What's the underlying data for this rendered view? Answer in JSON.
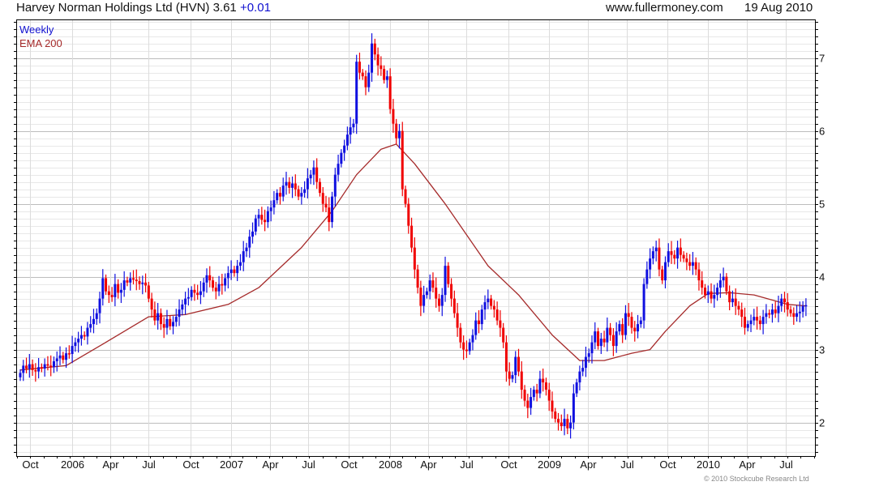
{
  "header": {
    "title": "Harvey Norman Holdings Ltd (HVN) 3.61",
    "change": "+0.01",
    "site": "www.fullermoney.com",
    "date": "19 Aug 2010"
  },
  "footer": {
    "copyright": "© 2010 Stockcube Research Ltd"
  },
  "colors": {
    "up": "#1010e0",
    "down": "#f00000",
    "ema": "#a52a2a",
    "grid_major": "#bdbdbd",
    "grid_minor": "#e8e8e8"
  },
  "chart_data": {
    "type": "candlestick",
    "title": "Harvey Norman Holdings Ltd (HVN)",
    "legend": [
      "Weekly",
      "EMA 200"
    ],
    "legend_placement": "top-left",
    "ylim": [
      1.54,
      7.53
    ],
    "y_ticks": [
      2,
      3,
      4,
      5,
      6,
      7
    ],
    "x_unit": "week index",
    "xlim": [
      -1,
      260
    ],
    "x_ticks": [
      {
        "label": "Oct",
        "week": 3.2
      },
      {
        "label": "2006",
        "week": 17
      },
      {
        "label": "Apr",
        "week": 29.4
      },
      {
        "label": "Jul",
        "week": 41.9
      },
      {
        "label": "Oct",
        "week": 55.7
      },
      {
        "label": "2007",
        "week": 69
      },
      {
        "label": "Apr",
        "week": 81.7
      },
      {
        "label": "Jul",
        "week": 94.2
      },
      {
        "label": "Oct",
        "week": 107.4
      },
      {
        "label": "2008",
        "week": 121
      },
      {
        "label": "Apr",
        "week": 133.4
      },
      {
        "label": "Jul",
        "week": 145.9
      },
      {
        "label": "Oct",
        "week": 159.7
      },
      {
        "label": "2009",
        "week": 173
      },
      {
        "label": "Apr",
        "week": 185.7
      },
      {
        "label": "Jul",
        "week": 198.4
      },
      {
        "label": "Oct",
        "week": 211.7
      },
      {
        "label": "2010",
        "week": 225
      },
      {
        "label": "Apr",
        "week": 237.7
      },
      {
        "label": "Jul",
        "week": 250.4
      }
    ],
    "weekly_close": [
      2.68,
      2.78,
      2.74,
      2.8,
      2.72,
      2.7,
      2.76,
      2.74,
      2.8,
      2.78,
      2.76,
      2.84,
      2.88,
      2.92,
      2.86,
      2.95,
      2.94,
      3.05,
      3.1,
      3.15,
      3.2,
      3.18,
      3.3,
      3.35,
      3.42,
      3.5,
      3.7,
      3.98,
      3.8,
      3.75,
      3.72,
      3.9,
      3.78,
      3.82,
      3.95,
      3.92,
      3.98,
      3.96,
      3.94,
      3.9,
      3.92,
      3.88,
      3.7,
      3.55,
      3.4,
      3.5,
      3.35,
      3.3,
      3.42,
      3.32,
      3.38,
      3.45,
      3.55,
      3.62,
      3.7,
      3.72,
      3.82,
      3.78,
      3.75,
      3.8,
      3.92,
      4.02,
      3.95,
      3.85,
      3.8,
      3.9,
      3.88,
      3.98,
      4.05,
      4.1,
      4.05,
      4.15,
      4.2,
      4.35,
      4.4,
      4.55,
      4.62,
      4.8,
      4.85,
      4.78,
      4.75,
      4.9,
      4.95,
      5.05,
      5.15,
      5.1,
      5.25,
      5.3,
      5.22,
      5.28,
      5.2,
      5.1,
      5.15,
      5.2,
      5.35,
      5.4,
      5.5,
      5.3,
      5.15,
      5.0,
      4.95,
      4.75,
      5.1,
      5.4,
      5.55,
      5.7,
      5.8,
      5.95,
      6.05,
      6.1,
      6.95,
      6.8,
      6.75,
      6.6,
      6.8,
      7.2,
      7.05,
      6.9,
      6.85,
      6.7,
      6.75,
      6.3,
      6.1,
      5.9,
      6.0,
      5.2,
      5.0,
      4.7,
      4.4,
      4.1,
      3.85,
      3.6,
      3.75,
      3.8,
      3.95,
      3.85,
      3.7,
      3.6,
      3.75,
      4.15,
      3.9,
      3.7,
      3.5,
      3.3,
      3.1,
      3.0,
      2.98,
      3.1,
      3.2,
      3.4,
      3.35,
      3.55,
      3.65,
      3.7,
      3.6,
      3.55,
      3.4,
      3.3,
      3.1,
      2.7,
      2.6,
      2.65,
      2.9,
      2.7,
      2.45,
      2.3,
      2.2,
      2.35,
      2.45,
      2.4,
      2.6,
      2.55,
      2.45,
      2.3,
      2.15,
      2.05,
      2.0,
      1.95,
      2.05,
      1.92,
      2.0,
      2.4,
      2.55,
      2.7,
      2.75,
      2.9,
      2.95,
      3.1,
      3.25,
      3.05,
      3.15,
      3.1,
      3.3,
      3.2,
      3.05,
      3.25,
      3.35,
      3.2,
      3.5,
      3.45,
      3.3,
      3.25,
      3.35,
      3.4,
      3.9,
      4.1,
      4.25,
      4.35,
      4.4,
      4.1,
      3.95,
      4.2,
      4.35,
      4.3,
      4.25,
      4.4,
      4.3,
      4.25,
      4.2,
      4.15,
      4.2,
      4.1,
      3.95,
      3.85,
      3.75,
      3.8,
      3.7,
      3.75,
      3.85,
      3.95,
      4.0,
      3.8,
      3.65,
      3.7,
      3.6,
      3.55,
      3.45,
      3.3,
      3.35,
      3.4,
      3.45,
      3.4,
      3.35,
      3.45,
      3.5,
      3.48,
      3.55,
      3.5,
      3.6,
      3.7,
      3.65,
      3.55,
      3.5,
      3.45,
      3.5,
      3.52,
      3.6,
      3.61
    ],
    "ema200": [
      [
        0,
        2.72
      ],
      [
        15,
        2.78
      ],
      [
        28,
        3.1
      ],
      [
        42,
        3.45
      ],
      [
        54,
        3.48
      ],
      [
        68,
        3.62
      ],
      [
        78,
        3.85
      ],
      [
        92,
        4.4
      ],
      [
        102,
        4.9
      ],
      [
        110,
        5.4
      ],
      [
        118,
        5.75
      ],
      [
        123,
        5.82
      ],
      [
        129,
        5.55
      ],
      [
        139,
        5.0
      ],
      [
        153,
        4.15
      ],
      [
        163,
        3.75
      ],
      [
        174,
        3.2
      ],
      [
        183,
        2.85
      ],
      [
        191,
        2.85
      ],
      [
        200,
        2.95
      ],
      [
        206,
        3.0
      ],
      [
        211,
        3.25
      ],
      [
        219,
        3.6
      ],
      [
        225,
        3.77
      ],
      [
        232,
        3.78
      ],
      [
        240,
        3.75
      ],
      [
        251,
        3.62
      ],
      [
        257,
        3.6
      ]
    ]
  }
}
